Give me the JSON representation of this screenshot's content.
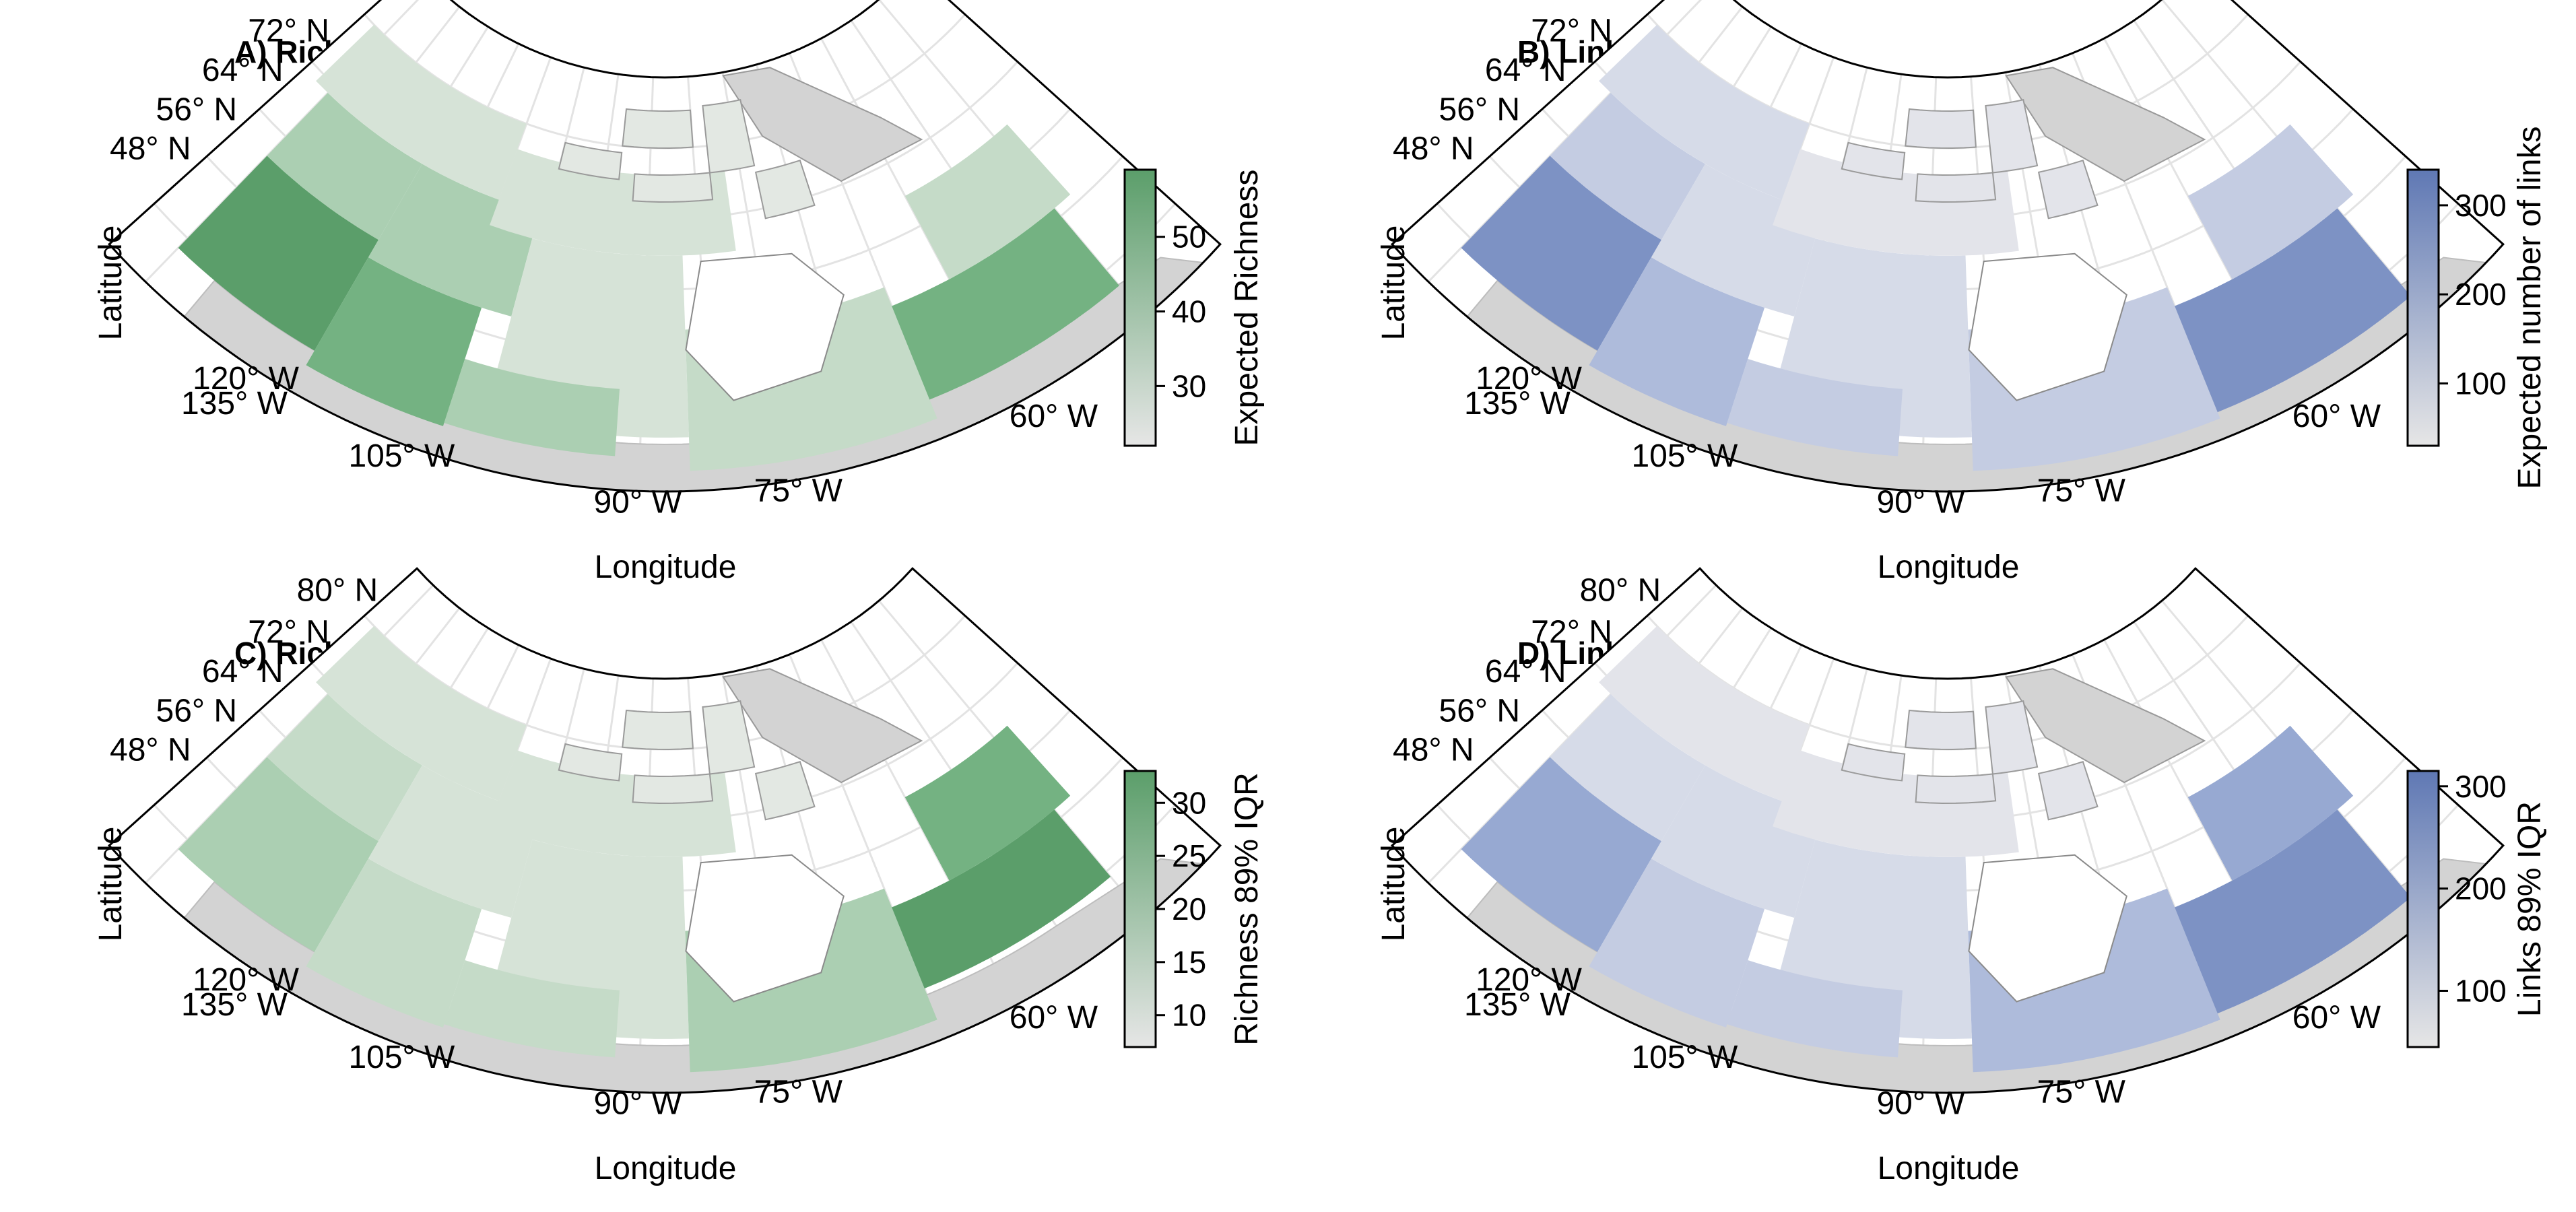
{
  "figure": {
    "panels": [
      {
        "title": "A) Richness",
        "xlabel": "Longitude",
        "ylabel": "Latitude",
        "colorbar": {
          "title": "Expected Richness",
          "ticks": [
            "50",
            "40",
            "30"
          ],
          "tick_values": [
            50,
            40,
            30
          ],
          "range": [
            22,
            59
          ],
          "color_high": "#5b9e6a",
          "color_low": "#e6e6e6"
        }
      },
      {
        "title": "B) Links",
        "xlabel": "Longitude",
        "ylabel": "Latitude",
        "colorbar": {
          "title": "Expected number of links",
          "ticks": [
            "300",
            "200",
            "100"
          ],
          "tick_values": [
            300,
            200,
            100
          ],
          "range": [
            30,
            340
          ],
          "color_high": "#5f78b4",
          "color_low": "#e6e6e6"
        }
      },
      {
        "title": "C) Richness IQR",
        "xlabel": "Longitude",
        "ylabel": "Latitude",
        "colorbar": {
          "title": "Richness 89% IQR",
          "ticks": [
            "30",
            "25",
            "20",
            "15",
            "10"
          ],
          "tick_values": [
            30,
            25,
            20,
            15,
            10
          ],
          "range": [
            7,
            33
          ],
          "color_high": "#5b9e6a",
          "color_low": "#e6e6e6"
        }
      },
      {
        "title": "D) Links IQR",
        "xlabel": "Longitude",
        "ylabel": "Latitude",
        "colorbar": {
          "title": "Links 89% IQR",
          "ticks": [
            "300",
            "200",
            "100"
          ],
          "tick_values": [
            300,
            200,
            100
          ],
          "range": [
            45,
            315
          ],
          "color_high": "#5f78b4",
          "color_low": "#e6e6e6"
        }
      }
    ],
    "lat_ticks": [
      "80° N",
      "72° N",
      "64° N",
      "56° N",
      "48° N"
    ],
    "lon_ticks": [
      "135° W",
      "120° W",
      "105° W",
      "90° W",
      "75° W",
      "60° W"
    ],
    "colors": {
      "green_accent": "#5b9e6a",
      "blue_accent": "#5f78b4",
      "us_land": "#d3d3d3",
      "ocean": "#ffffff",
      "graticule": "#e3e3e3"
    }
  }
}
